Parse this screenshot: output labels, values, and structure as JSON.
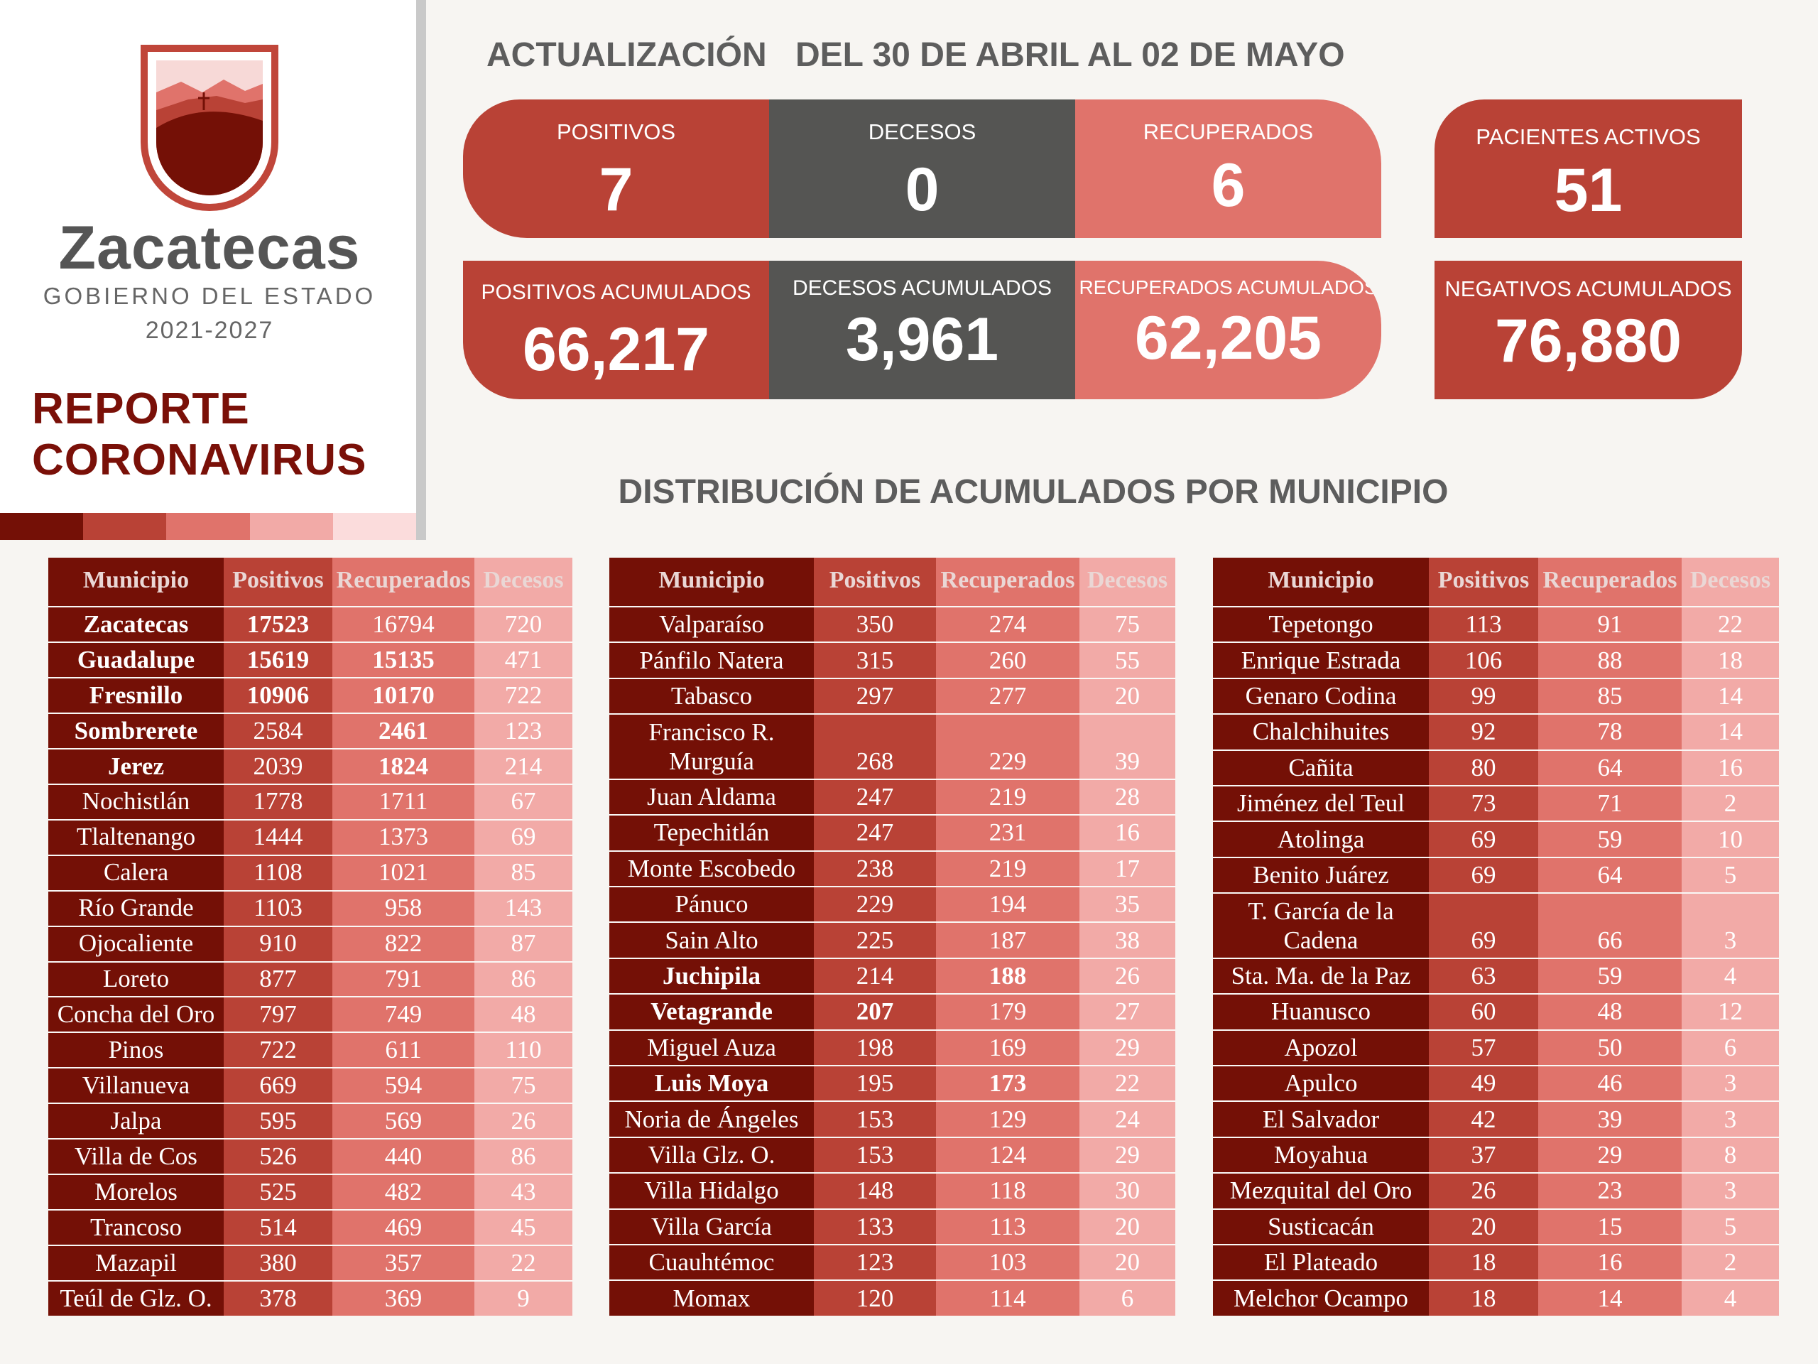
{
  "logo": {
    "name": "Zacatecas",
    "subtitle": "GOBIERNO DEL ESTADO",
    "years": "2021-2027"
  },
  "report": {
    "line1": "REPORTE",
    "line2": "CORONAVIRUS"
  },
  "header": {
    "update_label": "ACTUALIZACIÓN",
    "period": "DEL 30 DE ABRIL AL 02 DE MAYO"
  },
  "daily": {
    "positivos": {
      "label": "POSITIVOS",
      "value": "7"
    },
    "decesos": {
      "label": "DECESOS",
      "value": "0"
    },
    "recuperados": {
      "label": "RECUPERADOS",
      "value": "6"
    },
    "activos": {
      "label": "PACIENTES ACTIVOS",
      "value": "51"
    }
  },
  "accum": {
    "positivos": {
      "label": "POSITIVOS ACUMULADOS",
      "value": "66,217"
    },
    "decesos": {
      "label": "DECESOS ACUMULADOS",
      "value": "3,961"
    },
    "recuperados": {
      "label": "RECUPERADOS ACUMULADOS",
      "value": "62,205"
    },
    "negativos": {
      "label": "NEGATIVOS ACUMULADOS",
      "value": "76,880"
    }
  },
  "distribution_title": "DISTRIBUCIÓN DE ACUMULADOS POR MUNICIPIO",
  "colors": {
    "dark": "#741006",
    "red": "#b94236",
    "gray": "#555553",
    "pink": "#e0736b",
    "light": "#f2aaa7"
  },
  "columns": [
    "Municipio",
    "Positivos",
    "Recuperados",
    "Decesos"
  ],
  "tables": [
    [
      {
        "m": "Zacatecas",
        "p": "17523",
        "r": "16794",
        "d": "720",
        "b": [
          1,
          1,
          0,
          0
        ]
      },
      {
        "m": "Guadalupe",
        "p": "15619",
        "r": "15135",
        "d": "471",
        "b": [
          1,
          1,
          1,
          0
        ]
      },
      {
        "m": "Fresnillo",
        "p": "10906",
        "r": "10170",
        "d": "722",
        "b": [
          1,
          1,
          1,
          0
        ]
      },
      {
        "m": "Sombrerete",
        "p": "2584",
        "r": "2461",
        "d": "123",
        "b": [
          1,
          0,
          1,
          0
        ]
      },
      {
        "m": "Jerez",
        "p": "2039",
        "r": "1824",
        "d": "214",
        "b": [
          1,
          0,
          1,
          0
        ]
      },
      {
        "m": "Nochistlán",
        "p": "1778",
        "r": "1711",
        "d": "67"
      },
      {
        "m": "Tlaltenango",
        "p": "1444",
        "r": "1373",
        "d": "69"
      },
      {
        "m": "Calera",
        "p": "1108",
        "r": "1021",
        "d": "85"
      },
      {
        "m": "Río Grande",
        "p": "1103",
        "r": "958",
        "d": "143"
      },
      {
        "m": "Ojocaliente",
        "p": "910",
        "r": "822",
        "d": "87"
      },
      {
        "m": "Loreto",
        "p": "877",
        "r": "791",
        "d": "86"
      },
      {
        "m": "Concha del Oro",
        "p": "797",
        "r": "749",
        "d": "48"
      },
      {
        "m": "Pinos",
        "p": "722",
        "r": "611",
        "d": "110"
      },
      {
        "m": "Villanueva",
        "p": "669",
        "r": "594",
        "d": "75"
      },
      {
        "m": "Jalpa",
        "p": "595",
        "r": "569",
        "d": "26"
      },
      {
        "m": "Villa de Cos",
        "p": "526",
        "r": "440",
        "d": "86"
      },
      {
        "m": "Morelos",
        "p": "525",
        "r": "482",
        "d": "43"
      },
      {
        "m": "Trancoso",
        "p": "514",
        "r": "469",
        "d": "45"
      },
      {
        "m": "Mazapil",
        "p": "380",
        "r": "357",
        "d": "22"
      },
      {
        "m": "Teúl de Glz. O.",
        "p": "378",
        "r": "369",
        "d": "9"
      }
    ],
    [
      {
        "m": "Valparaíso",
        "p": "350",
        "r": "274",
        "d": "75"
      },
      {
        "m": "Pánfilo Natera",
        "p": "315",
        "r": "260",
        "d": "55"
      },
      {
        "m": "Tabasco",
        "p": "297",
        "r": "277",
        "d": "20"
      },
      {
        "m": "Francisco R. Murguía",
        "p": "268",
        "r": "229",
        "d": "39",
        "two": true
      },
      {
        "m": "Juan Aldama",
        "p": "247",
        "r": "219",
        "d": "28"
      },
      {
        "m": "Tepechitlán",
        "p": "247",
        "r": "231",
        "d": "16"
      },
      {
        "m": "Monte Escobedo",
        "p": "238",
        "r": "219",
        "d": "17"
      },
      {
        "m": "Pánuco",
        "p": "229",
        "r": "194",
        "d": "35"
      },
      {
        "m": "Sain Alto",
        "p": "225",
        "r": "187",
        "d": "38"
      },
      {
        "m": "Juchipila",
        "p": "214",
        "r": "188",
        "d": "26",
        "b": [
          1,
          0,
          1,
          0
        ]
      },
      {
        "m": "Vetagrande",
        "p": "207",
        "r": "179",
        "d": "27",
        "b": [
          1,
          1,
          0,
          0
        ]
      },
      {
        "m": "Miguel Auza",
        "p": "198",
        "r": "169",
        "d": "29"
      },
      {
        "m": "Luis Moya",
        "p": "195",
        "r": "173",
        "d": "22",
        "b": [
          1,
          0,
          1,
          0
        ]
      },
      {
        "m": "Noria de Ángeles",
        "p": "153",
        "r": "129",
        "d": "24"
      },
      {
        "m": "Villa Glz. O.",
        "p": "153",
        "r": "124",
        "d": "29"
      },
      {
        "m": "Villa Hidalgo",
        "p": "148",
        "r": "118",
        "d": "30"
      },
      {
        "m": "Villa García",
        "p": "133",
        "r": "113",
        "d": "20"
      },
      {
        "m": "Cuauhtémoc",
        "p": "123",
        "r": "103",
        "d": "20"
      },
      {
        "m": "Momax",
        "p": "120",
        "r": "114",
        "d": "6"
      }
    ],
    [
      {
        "m": "Tepetongo",
        "p": "113",
        "r": "91",
        "d": "22"
      },
      {
        "m": "Enrique Estrada",
        "p": "106",
        "r": "88",
        "d": "18"
      },
      {
        "m": "Genaro Codina",
        "p": "99",
        "r": "85",
        "d": "14"
      },
      {
        "m": "Chalchihuites",
        "p": "92",
        "r": "78",
        "d": "14"
      },
      {
        "m": "Cañita",
        "p": "80",
        "r": "64",
        "d": "16"
      },
      {
        "m": "Jiménez del Teul",
        "p": "73",
        "r": "71",
        "d": "2"
      },
      {
        "m": "Atolinga",
        "p": "69",
        "r": "59",
        "d": "10"
      },
      {
        "m": "Benito Juárez",
        "p": "69",
        "r": "64",
        "d": "5"
      },
      {
        "m": "T. García de la Cadena",
        "p": "69",
        "r": "66",
        "d": "3",
        "two": true
      },
      {
        "m": "Sta. Ma. de la Paz",
        "p": "63",
        "r": "59",
        "d": "4"
      },
      {
        "m": "Huanusco",
        "p": "60",
        "r": "48",
        "d": "12"
      },
      {
        "m": "Apozol",
        "p": "57",
        "r": "50",
        "d": "6"
      },
      {
        "m": "Apulco",
        "p": "49",
        "r": "46",
        "d": "3"
      },
      {
        "m": "El Salvador",
        "p": "42",
        "r": "39",
        "d": "3"
      },
      {
        "m": "Moyahua",
        "p": "37",
        "r": "29",
        "d": "8"
      },
      {
        "m": "Mezquital del Oro",
        "p": "26",
        "r": "23",
        "d": "3"
      },
      {
        "m": "Susticacán",
        "p": "20",
        "r": "15",
        "d": "5"
      },
      {
        "m": "El Plateado",
        "p": "18",
        "r": "16",
        "d": "2"
      },
      {
        "m": "Melchor Ocampo",
        "p": "18",
        "r": "14",
        "d": "4"
      }
    ]
  ]
}
